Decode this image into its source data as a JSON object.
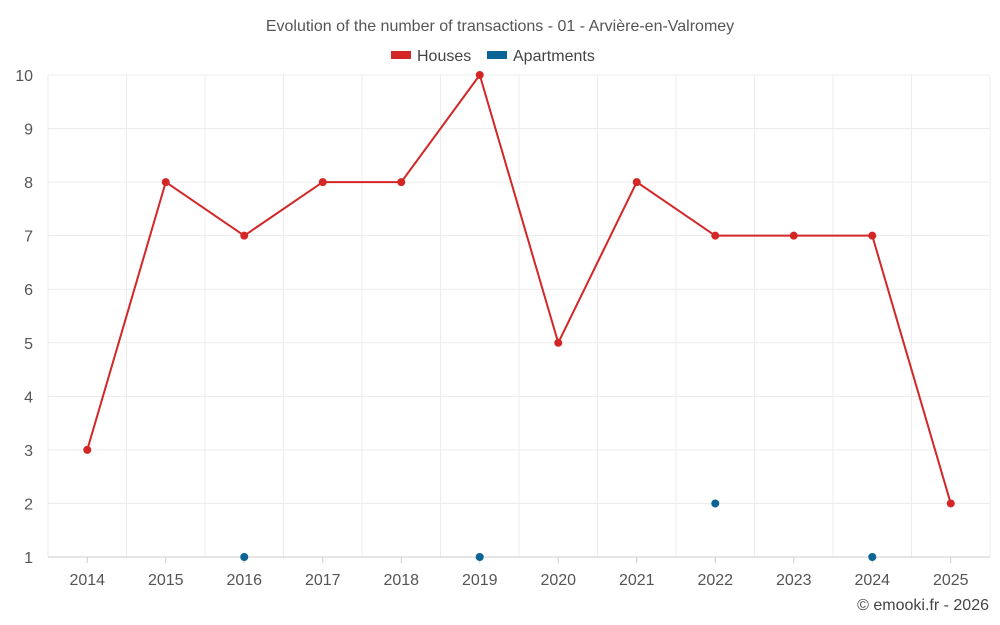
{
  "chart_data": {
    "type": "line",
    "title": "Evolution of the number of transactions - 01 - Arvière-en-Valromey",
    "categories": [
      "2014",
      "2015",
      "2016",
      "2017",
      "2018",
      "2019",
      "2020",
      "2021",
      "2022",
      "2023",
      "2024",
      "2025"
    ],
    "y_ticks": [
      "1",
      "2",
      "3",
      "4",
      "5",
      "6",
      "7",
      "8",
      "9",
      "10"
    ],
    "ylim": [
      1,
      10
    ],
    "grid": true,
    "legend_position": "top-center",
    "series": [
      {
        "name": "Houses",
        "color": "#d32626",
        "show_line": true,
        "points": [
          {
            "x": "2014",
            "y": 3
          },
          {
            "x": "2015",
            "y": 8
          },
          {
            "x": "2016",
            "y": 7
          },
          {
            "x": "2017",
            "y": 8
          },
          {
            "x": "2018",
            "y": 8
          },
          {
            "x": "2019",
            "y": 10
          },
          {
            "x": "2020",
            "y": 5
          },
          {
            "x": "2021",
            "y": 8
          },
          {
            "x": "2022",
            "y": 7
          },
          {
            "x": "2023",
            "y": 7
          },
          {
            "x": "2024",
            "y": 7
          },
          {
            "x": "2025",
            "y": 2
          }
        ]
      },
      {
        "name": "Apartments",
        "color": "#0a6496",
        "show_line": false,
        "points": [
          {
            "x": "2016",
            "y": 1
          },
          {
            "x": "2019",
            "y": 1
          },
          {
            "x": "2022",
            "y": 2
          },
          {
            "x": "2024",
            "y": 1
          }
        ]
      }
    ]
  },
  "credit": "© emooki.fr - 2026"
}
